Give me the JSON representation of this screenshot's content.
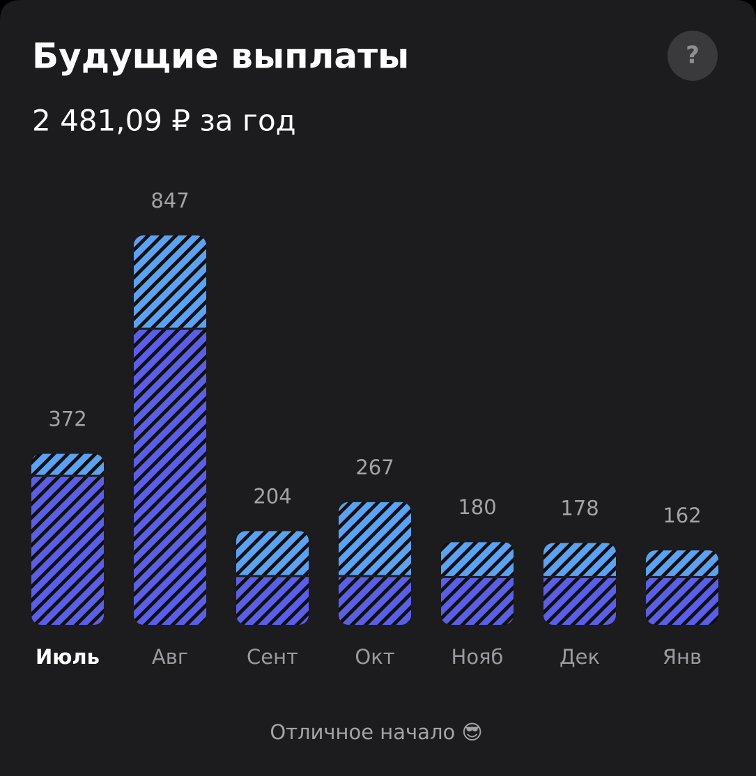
{
  "title": "Будущие выплаты",
  "subtitle": "2 481,09 ₽ за год",
  "help_button": "?",
  "footer": "Отличное начало 😎",
  "chart_data": {
    "type": "bar",
    "stacked": true,
    "categories": [
      "Июль",
      "Авг",
      "Сент",
      "Окт",
      "Нояб",
      "Дек",
      "Янв"
    ],
    "totals": [
      372,
      847,
      204,
      267,
      180,
      178,
      162
    ],
    "series": [
      {
        "color": "#5a5fe6",
        "values": [
          324,
          644,
          106,
          106,
          104,
          104,
          104
        ]
      },
      {
        "color": "#5ca2f2",
        "values": [
          48,
          203,
          98,
          161,
          76,
          74,
          58
        ]
      }
    ]
  }
}
